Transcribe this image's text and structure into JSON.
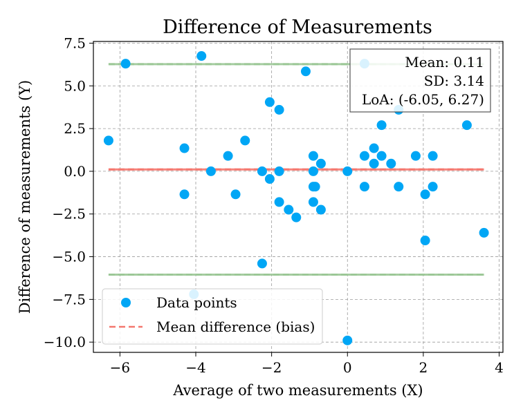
{
  "chart_data": {
    "type": "scatter",
    "title": "Difference of Measurements",
    "xlabel": "Average of two measurements (X)",
    "ylabel": "Difference of measurements (Y)",
    "xlim": [
      -6.7,
      4.1
    ],
    "ylim": [
      -10.6,
      7.6
    ],
    "xticks": [
      -6,
      -4,
      -2,
      0,
      2,
      4
    ],
    "xtick_labels": [
      "−6",
      "−4",
      "−2",
      "0",
      "2",
      "4"
    ],
    "yticks": [
      7.5,
      5.0,
      2.5,
      0.0,
      -2.5,
      -5.0,
      -7.5,
      -10.0
    ],
    "ytick_labels": [
      "7.5",
      "5.0",
      "2.5",
      "0.0",
      "−2.5",
      "−5.0",
      "−7.5",
      "−10.0"
    ],
    "grid": true,
    "series": [
      {
        "name": "Data points",
        "color": "#00a6f5",
        "points": [
          [
            -6.3,
            1.8
          ],
          [
            -5.85,
            6.3
          ],
          [
            -4.3,
            1.35
          ],
          [
            -4.3,
            -1.35
          ],
          [
            -4.05,
            -7.2
          ],
          [
            -3.85,
            6.75
          ],
          [
            -3.6,
            0.0
          ],
          [
            -3.15,
            0.9
          ],
          [
            -2.95,
            -1.35
          ],
          [
            -2.7,
            1.8
          ],
          [
            -2.25,
            0.0
          ],
          [
            -2.25,
            -5.4
          ],
          [
            -2.05,
            4.05
          ],
          [
            -2.05,
            -0.45
          ],
          [
            -1.8,
            3.6
          ],
          [
            -1.8,
            0.0
          ],
          [
            -1.8,
            -1.8
          ],
          [
            -1.55,
            -2.25
          ],
          [
            -1.35,
            -2.7
          ],
          [
            -1.1,
            5.85
          ],
          [
            -0.9,
            0.9
          ],
          [
            -0.9,
            0.0
          ],
          [
            -0.9,
            -0.9
          ],
          [
            -0.9,
            -1.8
          ],
          [
            -0.85,
            -0.9
          ],
          [
            -0.7,
            0.45
          ],
          [
            -0.7,
            -2.25
          ],
          [
            0.0,
            0.0
          ],
          [
            0.0,
            -9.9
          ],
          [
            0.45,
            6.3
          ],
          [
            0.45,
            0.9
          ],
          [
            0.45,
            -0.9
          ],
          [
            0.7,
            1.35
          ],
          [
            0.7,
            0.45
          ],
          [
            0.9,
            2.7
          ],
          [
            0.9,
            0.9
          ],
          [
            1.15,
            0.45
          ],
          [
            1.35,
            3.6
          ],
          [
            1.35,
            -0.9
          ],
          [
            1.8,
            0.9
          ],
          [
            2.05,
            -1.35
          ],
          [
            2.05,
            -4.05
          ],
          [
            2.25,
            0.9
          ],
          [
            2.25,
            -0.9
          ],
          [
            3.15,
            2.7
          ],
          [
            3.6,
            -3.6
          ]
        ]
      }
    ],
    "lines": [
      {
        "name": "Mean difference (bias)",
        "y": 0.11,
        "x_range": [
          -6.3,
          3.6
        ],
        "color": "#f4776e",
        "style": "dashed"
      },
      {
        "y": 6.27,
        "x_range": [
          -6.3,
          3.6
        ],
        "color": "#9bc796",
        "style": "dashed"
      },
      {
        "y": -6.05,
        "x_range": [
          -6.3,
          3.6
        ],
        "color": "#9bc796",
        "style": "dashed"
      }
    ],
    "stats_box": {
      "mean": "Mean: 0.11",
      "sd": "SD: 3.14",
      "loa": "LoA: (-6.05, 6.27)",
      "position": "top-right"
    },
    "legend": {
      "position": "lower-left",
      "entries": [
        {
          "label": "Data points",
          "marker": "circle",
          "color": "#00a6f5"
        },
        {
          "label": "Mean difference (bias)",
          "marker": "dashed-line",
          "color": "#f4776e"
        }
      ]
    }
  }
}
